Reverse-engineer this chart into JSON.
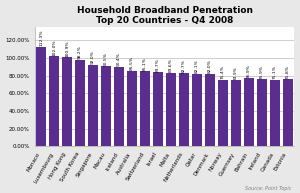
{
  "title_line1": "Household Broadband Penetration",
  "title_line2": "Top 20 Countries - Q4 2008",
  "source": "Source: Point Topic",
  "categories": [
    "Monaco",
    "Luxembourg",
    "Hong Kong",
    "South Korea",
    "Singapore",
    "Macau",
    "Iceland",
    "Australia",
    "Switzerland",
    "Israel",
    "Malta",
    "Netherlands",
    "Qatar",
    "Denmark",
    "Norway",
    "Guernsey",
    "Bahrain",
    "Ireland",
    "Canada",
    "Estonia"
  ],
  "values": [
    112.3,
    102.0,
    100.9,
    98.2,
    92.0,
    90.5,
    90.4,
    85.5,
    85.1,
    83.7,
    83.6,
    82.7,
    82.1,
    82.0,
    75.4,
    74.9,
    76.9,
    75.9,
    75.1,
    75.8
  ],
  "bar_color": "#5b2d8e",
  "bg_color": "#e8e8e8",
  "plot_bg_color": "#ffffff",
  "ylim": [
    0,
    120
  ],
  "yticks": [
    0,
    20,
    40,
    60,
    80,
    100,
    120
  ],
  "bar_label_fontsize": 3.2,
  "title_fontsize": 6.5,
  "tick_fontsize": 4.0,
  "source_fontsize": 3.5
}
